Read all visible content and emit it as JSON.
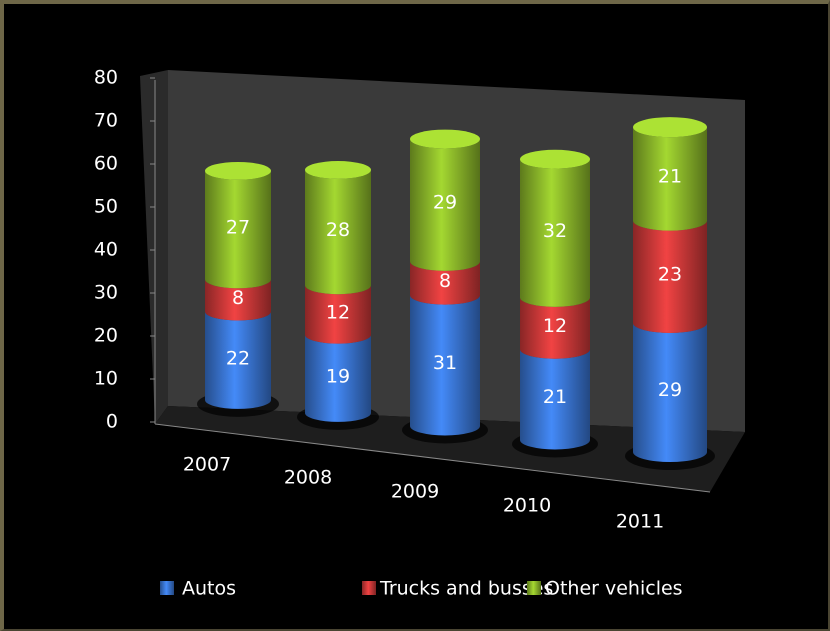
{
  "chart_data": {
    "type": "bar3d_stacked_cylinder",
    "categories": [
      "2007",
      "2008",
      "2009",
      "2010",
      "2011"
    ],
    "series": [
      {
        "name": "Autos",
        "color": "#3b78d8",
        "values": [
          22,
          19,
          31,
          21,
          29
        ]
      },
      {
        "name": "Trucks and busses",
        "color": "#d23a3a",
        "values": [
          8,
          12,
          8,
          12,
          23
        ]
      },
      {
        "name": "Other vehicles",
        "color": "#8fbc2b",
        "values": [
          27,
          28,
          29,
          32,
          21
        ]
      }
    ],
    "ylim": [
      0,
      80
    ],
    "yticks": [
      0,
      10,
      20,
      30,
      40,
      50,
      60,
      70,
      80
    ],
    "legend": "bottom"
  }
}
